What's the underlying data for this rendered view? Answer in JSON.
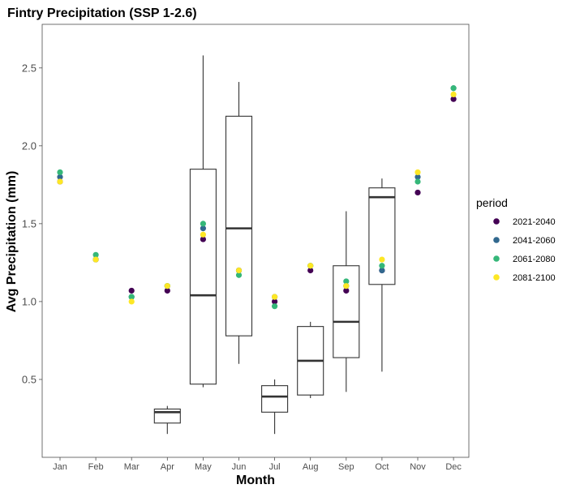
{
  "chart_data": {
    "type": "box+scatter",
    "title": "Fintry Precipitation (SSP 1-2.6)",
    "xlabel": "Month",
    "ylabel": "Avg Precipitation (mm)",
    "ylim": [
      0.0,
      2.78
    ],
    "yticks": [
      "0.5",
      "1.0",
      "1.5",
      "2.0",
      "2.5"
    ],
    "categories": [
      "Jan",
      "Feb",
      "Mar",
      "Apr",
      "May",
      "Jun",
      "Jul",
      "Aug",
      "Sep",
      "Oct",
      "Nov",
      "Dec"
    ],
    "grid": false,
    "legend": {
      "title": "period",
      "placement": "right"
    },
    "boxes": [
      {
        "month": "Apr",
        "min": 0.15,
        "q1": 0.22,
        "median": 0.29,
        "q3": 0.31,
        "max": 0.33
      },
      {
        "month": "May",
        "min": 0.45,
        "q1": 0.47,
        "median": 1.04,
        "q3": 1.85,
        "max": 2.58
      },
      {
        "month": "Jun",
        "min": 0.6,
        "q1": 0.78,
        "median": 1.47,
        "q3": 2.19,
        "max": 2.41
      },
      {
        "month": "Jul",
        "min": 0.15,
        "q1": 0.29,
        "median": 0.39,
        "q3": 0.46,
        "max": 0.5
      },
      {
        "month": "Aug",
        "min": 0.38,
        "q1": 0.4,
        "median": 0.62,
        "q3": 0.84,
        "max": 0.87
      },
      {
        "month": "Sep",
        "min": 0.42,
        "q1": 0.64,
        "median": 0.87,
        "q3": 1.23,
        "max": 1.58
      },
      {
        "month": "Oct",
        "min": 0.55,
        "q1": 1.11,
        "median": 1.67,
        "q3": 1.73,
        "max": 1.79
      }
    ],
    "series": [
      {
        "name": "2021-2040",
        "color": "#440154",
        "values": [
          1.77,
          1.27,
          1.07,
          1.07,
          1.4,
          1.2,
          1.0,
          1.2,
          1.07,
          1.2,
          1.7,
          2.3
        ]
      },
      {
        "name": "2041-2060",
        "color": "#31688e",
        "values": [
          1.8,
          1.27,
          1.03,
          1.1,
          1.47,
          1.2,
          1.03,
          1.23,
          1.1,
          1.2,
          1.8,
          2.37
        ]
      },
      {
        "name": "2061-2080",
        "color": "#35b779",
        "values": [
          1.83,
          1.3,
          1.03,
          1.1,
          1.5,
          1.17,
          0.97,
          1.23,
          1.13,
          1.23,
          1.77,
          2.37
        ]
      },
      {
        "name": "2081-2100",
        "color": "#fde725",
        "values": [
          1.77,
          1.27,
          1.0,
          1.1,
          1.43,
          1.2,
          1.03,
          1.23,
          1.1,
          1.27,
          1.83,
          2.33
        ]
      }
    ]
  }
}
